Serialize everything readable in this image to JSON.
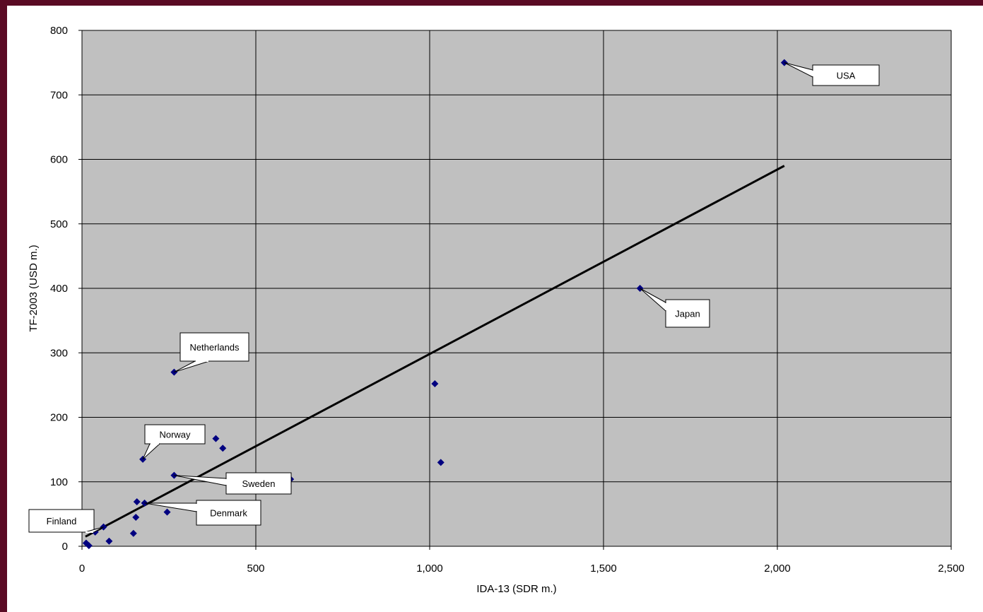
{
  "chart_data": {
    "type": "scatter",
    "title": "",
    "xlabel": "IDA-13 (SDR m.)",
    "ylabel": "TF-2003 (USD m.)",
    "xlim": [
      0,
      2500
    ],
    "ylim": [
      0,
      800
    ],
    "x_ticks": [
      0,
      500,
      1000,
      1500,
      2000,
      2500
    ],
    "x_tick_labels": [
      "0",
      "500",
      "1,000",
      "1,500",
      "2,000",
      "2,500"
    ],
    "y_ticks": [
      0,
      100,
      200,
      300,
      400,
      500,
      600,
      700,
      800
    ],
    "y_tick_labels": [
      "0",
      "100",
      "200",
      "300",
      "400",
      "500",
      "600",
      "700",
      "800"
    ],
    "grid": true,
    "background_color": "#c0c0c0",
    "marker_color": "#000080",
    "trendline": {
      "x": [
        10,
        2020
      ],
      "y": [
        15,
        590
      ],
      "color": "#000000"
    },
    "points": [
      {
        "x": 2020,
        "y": 750,
        "label": "USA"
      },
      {
        "x": 1605,
        "y": 400,
        "label": "Japan"
      },
      {
        "x": 265,
        "y": 270,
        "label": "Netherlands"
      },
      {
        "x": 175,
        "y": 135,
        "label": "Norway"
      },
      {
        "x": 265,
        "y": 110,
        "label": "Sweden"
      },
      {
        "x": 180,
        "y": 67,
        "label": "Denmark"
      },
      {
        "x": 62,
        "y": 30,
        "label": "Finland"
      },
      {
        "x": 1015,
        "y": 252,
        "label": ""
      },
      {
        "x": 1032,
        "y": 130,
        "label": ""
      },
      {
        "x": 385,
        "y": 167,
        "label": ""
      },
      {
        "x": 405,
        "y": 152,
        "label": ""
      },
      {
        "x": 600,
        "y": 104,
        "label": ""
      },
      {
        "x": 158,
        "y": 69,
        "label": ""
      },
      {
        "x": 155,
        "y": 45,
        "label": ""
      },
      {
        "x": 245,
        "y": 53,
        "label": ""
      },
      {
        "x": 148,
        "y": 20,
        "label": ""
      },
      {
        "x": 78,
        "y": 8,
        "label": ""
      },
      {
        "x": 38,
        "y": 22,
        "label": ""
      },
      {
        "x": 12,
        "y": 5,
        "label": ""
      },
      {
        "x": 20,
        "y": 1,
        "label": ""
      }
    ]
  }
}
